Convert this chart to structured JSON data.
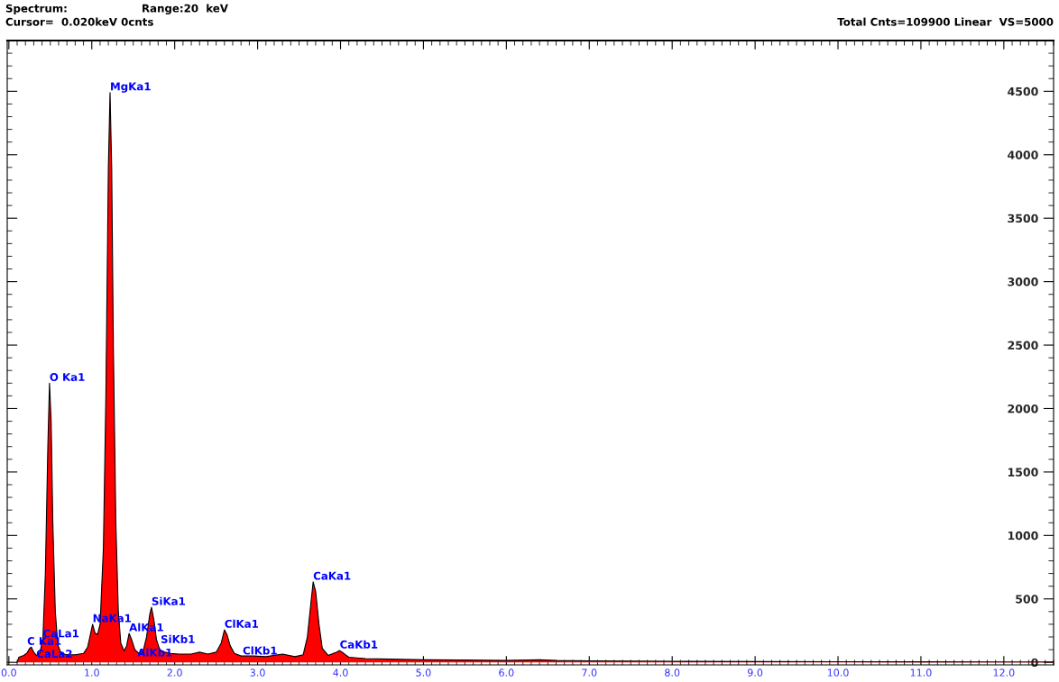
{
  "chart_data": {
    "type": "area",
    "color": "#ff0000",
    "x": [
      0.1,
      0.12,
      0.18,
      0.22,
      0.25,
      0.27,
      0.3,
      0.33,
      0.37,
      0.41,
      0.44,
      0.47,
      0.49,
      0.51,
      0.53,
      0.56,
      0.59,
      0.63,
      0.7,
      0.8,
      0.85,
      0.9,
      0.95,
      0.99,
      1.01,
      1.04,
      1.07,
      1.1,
      1.14,
      1.17,
      1.2,
      1.22,
      1.24,
      1.26,
      1.29,
      1.32,
      1.35,
      1.39,
      1.42,
      1.45,
      1.48,
      1.52,
      1.57,
      1.62,
      1.66,
      1.7,
      1.72,
      1.75,
      1.78,
      1.82,
      1.88,
      1.95,
      2.05,
      2.2,
      2.3,
      2.4,
      2.5,
      2.56,
      2.6,
      2.63,
      2.67,
      2.72,
      2.8,
      2.95,
      3.1,
      3.3,
      3.45,
      3.55,
      3.6,
      3.64,
      3.67,
      3.7,
      3.74,
      3.78,
      3.85,
      3.95,
      3.99,
      4.04,
      4.1,
      4.3,
      4.6,
      5.0,
      5.5,
      6.0,
      6.4,
      6.6,
      7.0,
      7.5,
      8.0,
      9.0,
      10.0,
      11.0,
      12.0,
      12.6
    ],
    "values": [
      0,
      40,
      55,
      75,
      110,
      120,
      80,
      55,
      70,
      180,
      700,
      1700,
      2200,
      1900,
      1100,
      400,
      140,
      70,
      60,
      60,
      65,
      70,
      120,
      240,
      300,
      230,
      220,
      300,
      900,
      2100,
      3900,
      4490,
      3900,
      2500,
      1100,
      400,
      150,
      90,
      130,
      228,
      180,
      100,
      70,
      90,
      200,
      380,
      434,
      330,
      180,
      100,
      80,
      70,
      65,
      65,
      80,
      65,
      80,
      150,
      256,
      220,
      130,
      70,
      50,
      50,
      45,
      65,
      45,
      60,
      200,
      450,
      634,
      560,
      300,
      110,
      55,
      80,
      93,
      70,
      40,
      30,
      25,
      20,
      18,
      15,
      20,
      15,
      12,
      10,
      8,
      6,
      5,
      4,
      3,
      3
    ],
    "xlim": [
      -0.02,
      12.6
    ],
    "ylim": [
      -20,
      4900
    ],
    "xticks": [
      {
        "value": 0,
        "label": "0.0"
      },
      {
        "value": 1,
        "label": "1.0"
      },
      {
        "value": 2,
        "label": "2.0"
      },
      {
        "value": 3,
        "label": "3.0"
      },
      {
        "value": 4,
        "label": "4.0"
      },
      {
        "value": 5,
        "label": "5.0"
      },
      {
        "value": 6,
        "label": "6.0"
      },
      {
        "value": 7,
        "label": "7.0"
      },
      {
        "value": 8,
        "label": "8.0"
      },
      {
        "value": 9,
        "label": "9.0"
      },
      {
        "value": 10,
        "label": "10.0"
      },
      {
        "value": 11,
        "label": "11.0"
      },
      {
        "value": 12,
        "label": "12.0"
      }
    ],
    "yticks": [
      0,
      500,
      1000,
      1500,
      2000,
      2500,
      3000,
      3500,
      4000,
      4500
    ],
    "grid": false,
    "annotations": [
      "Spectrum:",
      "Range:20  keV",
      "Cursor=  0.020keV 0cnts",
      "Total Cnts=109900 Linear  VS=5000",
      {
        "text": "O Ka1",
        "x": 0.49,
        "y": 2200
      },
      {
        "text": "MgKa1",
        "x": 1.22,
        "y": 4490
      },
      {
        "text": "NaKa1",
        "x": 1.01,
        "y": 300
      },
      {
        "text": "AlKa1",
        "x": 1.45,
        "y": 228
      },
      {
        "text": "SiKa1",
        "x": 1.72,
        "y": 434
      },
      {
        "text": "SiKb1",
        "x": 1.83,
        "y": 135
      },
      {
        "text": "AlKb1",
        "x": 1.55,
        "y": 30
      },
      {
        "text": "ClKa1",
        "x": 2.6,
        "y": 256
      },
      {
        "text": "ClKb1",
        "x": 2.82,
        "y": 45
      },
      {
        "text": "CaKa1",
        "x": 3.67,
        "y": 634
      },
      {
        "text": "CaKb1",
        "x": 3.99,
        "y": 93
      },
      {
        "text": "C Ka1",
        "x": 0.22,
        "y": 120
      },
      {
        "text": "CaLa1",
        "x": 0.41,
        "y": 180
      },
      {
        "text": "CaLa2",
        "x": 0.33,
        "y": 20
      }
    ]
  }
}
